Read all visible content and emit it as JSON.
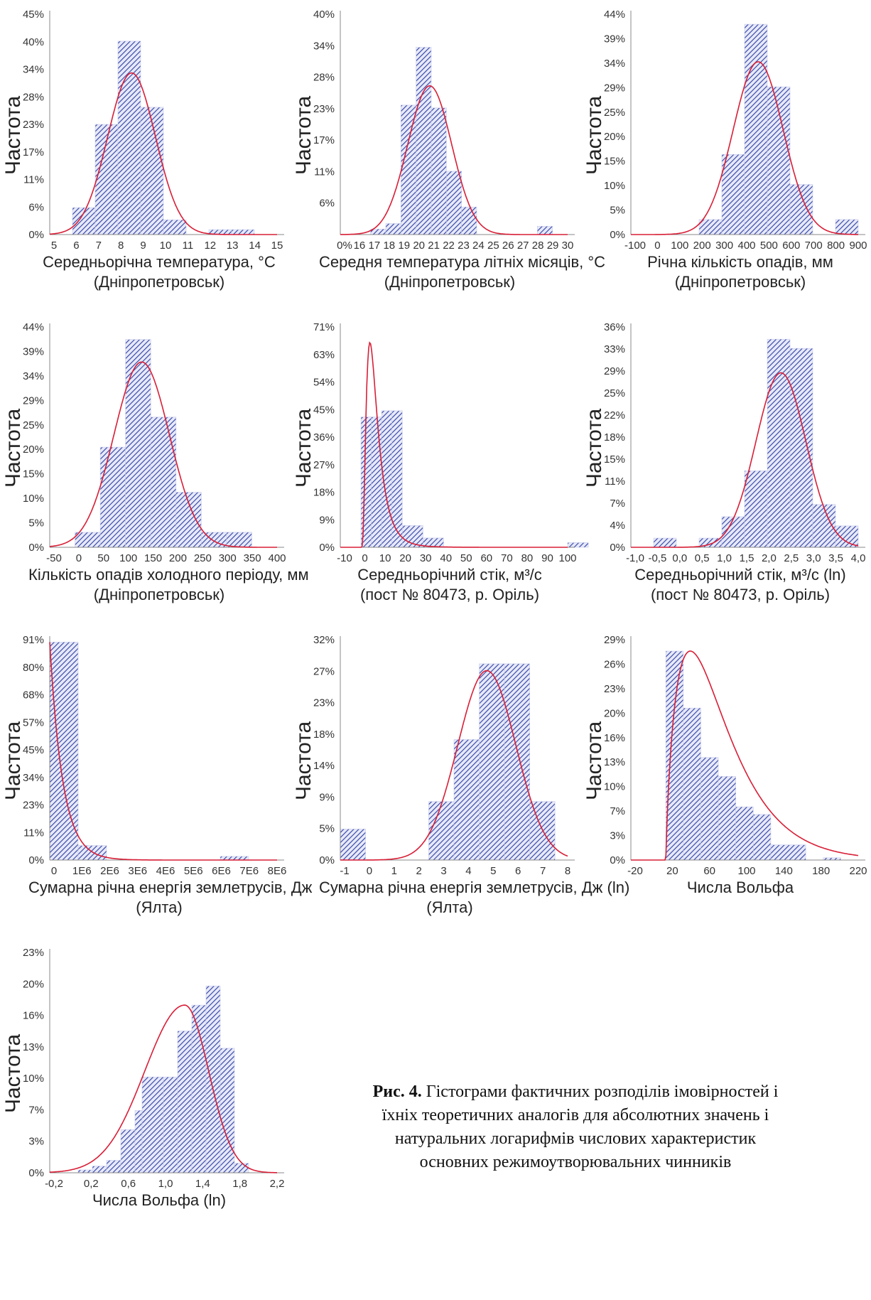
{
  "ylabel": "Частота",
  "caption": {
    "prefix": "Рис. 4.",
    "text": "Гістограми фактичних розподілів імовірностей і їхніх теоретичних аналогів для абсолютних значень і натуральних логарифмів числових характеристик основних режимоутворювальних чинників"
  },
  "colors": {
    "bar": "#2d3fa8",
    "curve": "#d81e36",
    "axis": "#888888"
  },
  "chart_data": [
    {
      "type": "bar",
      "ylabel": "Частота",
      "xlabel": "Середньорічна температура, °C",
      "xlabel2": "(Дніпропетровськ)",
      "x_ticks": [
        "5",
        "6",
        "7",
        "8",
        "9",
        "10",
        "11",
        "12",
        "13",
        "14",
        "15"
      ],
      "x_range": [
        5,
        15
      ],
      "y_ticks": [
        "0%",
        "6%",
        "11%",
        "17%",
        "23%",
        "28%",
        "34%",
        "40%",
        "45%"
      ],
      "y_max": 45,
      "bars": [
        [
          6,
          7,
          5.5
        ],
        [
          7,
          8,
          22.5
        ],
        [
          8,
          9,
          39.5
        ],
        [
          9,
          10,
          26
        ],
        [
          10,
          11,
          3
        ],
        [
          12,
          13,
          1
        ],
        [
          13,
          14,
          1
        ]
      ],
      "curve": {
        "kind": "normal",
        "mu": 8.6,
        "sigma": 1.05,
        "peak": 33
      }
    },
    {
      "type": "bar",
      "ylabel": "Частота",
      "xlabel": "Середня температура літніх місяців, °C",
      "xlabel2": "(Дніпропетровськ)",
      "x_ticks": [
        "0%",
        "16",
        "17",
        "18",
        "19",
        "20",
        "21",
        "22",
        "23",
        "24",
        "25",
        "26",
        "27",
        "28",
        "29",
        "30"
      ],
      "x_range": [
        15,
        30
      ],
      "y_ticks": [
        "",
        "6%",
        "11%",
        "17%",
        "23%",
        "28%",
        "34%",
        "40%"
      ],
      "y_max": 40,
      "bars": [
        [
          17,
          18,
          1
        ],
        [
          18,
          19,
          2
        ],
        [
          19,
          20,
          23.5
        ],
        [
          20,
          21,
          34
        ],
        [
          21,
          22,
          23
        ],
        [
          22,
          23,
          11.5
        ],
        [
          23,
          24,
          5
        ],
        [
          28,
          29,
          1.5
        ]
      ],
      "curve": {
        "kind": "normal",
        "mu": 20.9,
        "sigma": 1.45,
        "peak": 27
      }
    },
    {
      "type": "bar",
      "ylabel": "Частота",
      "xlabel": "Річна кількість опадів, мм",
      "xlabel2": "(Дніпропетровськ)",
      "x_ticks": [
        "-100",
        "0",
        "100",
        "200",
        "300",
        "400",
        "500",
        "600",
        "700",
        "800",
        "900"
      ],
      "x_range": [
        -100,
        900
      ],
      "y_ticks": [
        "0%",
        "5%",
        "10%",
        "15%",
        "20%",
        "25%",
        "29%",
        "34%",
        "39%",
        "44%"
      ],
      "y_max": 44,
      "bars": [
        [
          200,
          300,
          3
        ],
        [
          300,
          400,
          16
        ],
        [
          400,
          500,
          42
        ],
        [
          500,
          600,
          29.5
        ],
        [
          600,
          700,
          10
        ],
        [
          800,
          900,
          3
        ]
      ],
      "curve": {
        "kind": "normal",
        "mu": 460,
        "sigma": 110,
        "peak": 34.5
      }
    },
    {
      "type": "bar",
      "ylabel": "Частота",
      "xlabel": "Кількість опадів холодного періоду, мм",
      "xlabel2": "(Дніпропетровськ)",
      "x_ticks": [
        "-50",
        "0",
        "50",
        "100",
        "150",
        "200",
        "250",
        "300",
        "350",
        "400"
      ],
      "x_range": [
        -50,
        400
      ],
      "y_ticks": [
        "0%",
        "5%",
        "10%",
        "15%",
        "20%",
        "25%",
        "29%",
        "34%",
        "39%",
        "44%"
      ],
      "y_max": 44,
      "bars": [
        [
          0,
          50,
          3
        ],
        [
          50,
          100,
          20
        ],
        [
          100,
          150,
          41.5
        ],
        [
          150,
          200,
          26
        ],
        [
          200,
          250,
          11
        ],
        [
          250,
          300,
          3
        ],
        [
          300,
          350,
          3
        ]
      ],
      "curve": {
        "kind": "normal",
        "mu": 132,
        "sigma": 55,
        "peak": 37
      }
    },
    {
      "type": "bar",
      "ylabel": "Частота",
      "xlabel": "Середньорічний стік, м³/с",
      "xlabel2": "(пост № 80473, р. Оріль)",
      "x_ticks": [
        "-10",
        "0",
        "10",
        "20",
        "30",
        "40",
        "50",
        "60",
        "70",
        "80",
        "90",
        "100"
      ],
      "x_range": [
        -10,
        100
      ],
      "y_ticks": [
        "0%",
        "9%",
        "18%",
        "27%",
        "36%",
        "45%",
        "54%",
        "63%",
        "71%"
      ],
      "y_max": 71,
      "bars": [
        [
          0,
          5,
          42
        ],
        [
          5,
          10,
          42
        ],
        [
          10,
          15,
          44
        ],
        [
          15,
          20,
          44
        ],
        [
          20,
          30,
          7
        ],
        [
          30,
          40,
          3
        ],
        [
          100,
          110,
          1.5
        ]
      ],
      "curve": {
        "kind": "lognormal",
        "mu": 1.85,
        "sigma": 0.62,
        "peak": 66
      }
    },
    {
      "type": "bar",
      "ylabel": "Частота",
      "xlabel": "Середньорічний стік, м³/с (ln)",
      "xlabel2": "(пост № 80473, р. Оріль)",
      "x_ticks": [
        "-1,0",
        "-0,5",
        "0,0",
        "0,5",
        "1,0",
        "1,5",
        "2,0",
        "2,5",
        "3,0",
        "3,5",
        "4,0"
      ],
      "x_range": [
        -1.0,
        4.0
      ],
      "y_ticks": [
        "0%",
        "4%",
        "7%",
        "11%",
        "15%",
        "18%",
        "22%",
        "25%",
        "29%",
        "33%",
        "36%"
      ],
      "y_max": 36,
      "bars": [
        [
          -0.5,
          0,
          1.5
        ],
        [
          0.5,
          1.0,
          1.5
        ],
        [
          1.0,
          1.5,
          5
        ],
        [
          1.5,
          2.0,
          12.5
        ],
        [
          2.0,
          2.5,
          34
        ],
        [
          2.5,
          3.0,
          32.5
        ],
        [
          3.0,
          3.5,
          7
        ],
        [
          3.5,
          4.0,
          3.5
        ]
      ],
      "curve": {
        "kind": "normal",
        "mu": 2.3,
        "sigma": 0.55,
        "peak": 28.5
      }
    },
    {
      "type": "bar",
      "ylabel": "Частота",
      "xlabel": "Сумарна річна енергія землетрусів, Дж",
      "xlabel2": "(Ялта)",
      "x_ticks": [
        "0",
        "1E6",
        "2E6",
        "3E6",
        "4E6",
        "5E6",
        "6E6",
        "7E6",
        "8E6"
      ],
      "x_range": [
        0,
        8
      ],
      "y_ticks": [
        "0%",
        "11%",
        "23%",
        "34%",
        "45%",
        "57%",
        "68%",
        "80%",
        "91%"
      ],
      "y_max": 91,
      "bars": [
        [
          0,
          1,
          90
        ],
        [
          1,
          2,
          6
        ],
        [
          6,
          7,
          1.5
        ]
      ],
      "curve": {
        "kind": "exponential",
        "peak": 90,
        "rate": 2.2
      }
    },
    {
      "type": "bar",
      "ylabel": "Частота",
      "xlabel": "Сумарна річна енергія землетрусів, Дж (ln)",
      "xlabel2": "(Ялта)",
      "x_ticks": [
        "-1",
        "0",
        "1",
        "2",
        "3",
        "4",
        "5",
        "6",
        "7",
        "8"
      ],
      "x_range": [
        -1,
        8
      ],
      "y_ticks": [
        "0%",
        "5%",
        "9%",
        "14%",
        "18%",
        "23%",
        "27%",
        "32%"
      ],
      "y_max": 32,
      "bars": [
        [
          -1,
          0,
          4.5
        ],
        [
          2.5,
          3.5,
          8.5
        ],
        [
          3.5,
          4.5,
          17.5
        ],
        [
          4.5,
          5.5,
          28.5
        ],
        [
          5.5,
          6.5,
          28.5
        ],
        [
          6.5,
          7.5,
          8.5
        ]
      ],
      "curve": {
        "kind": "normal",
        "mu": 4.8,
        "sigma": 1.15,
        "peak": 27.5
      }
    },
    {
      "type": "bar",
      "ylabel": "Частота",
      "xlabel": "Числа Вольфа",
      "xlabel2": "",
      "x_ticks": [
        "-20",
        "20",
        "60",
        "100",
        "140",
        "180",
        "220"
      ],
      "x_range": [
        -40,
        220
      ],
      "y_ticks": [
        "0%",
        "3%",
        "7%",
        "10%",
        "13%",
        "16%",
        "20%",
        "23%",
        "26%",
        "29%"
      ],
      "y_max": 29,
      "bars": [
        [
          0,
          20,
          27.5
        ],
        [
          20,
          40,
          20
        ],
        [
          40,
          60,
          13.5
        ],
        [
          60,
          80,
          11
        ],
        [
          80,
          100,
          7
        ],
        [
          100,
          120,
          6
        ],
        [
          120,
          160,
          2
        ],
        [
          180,
          200,
          0.3
        ]
      ],
      "curve": {
        "kind": "gamma",
        "k": 1.8,
        "theta": 35,
        "shift": 0,
        "peak": 27.5
      }
    },
    {
      "type": "bar",
      "ylabel": "Частота",
      "xlabel": "Числа Вольфа (ln)",
      "xlabel2": "",
      "x_ticks": [
        "-0,2",
        "0,2",
        "0,6",
        "1,0",
        "1,4",
        "1,8",
        "2,2"
      ],
      "x_range": [
        -0.4,
        2.8
      ],
      "y_ticks": [
        "0%",
        "3%",
        "7%",
        "10%",
        "13%",
        "16%",
        "20%",
        "23%"
      ],
      "y_max": 23,
      "bars": [
        [
          0.0,
          0.2,
          0.3
        ],
        [
          0.2,
          0.4,
          0.7
        ],
        [
          0.4,
          0.6,
          1.3
        ],
        [
          0.6,
          0.8,
          4.5
        ],
        [
          0.8,
          0.9,
          6.5
        ],
        [
          0.9,
          1.2,
          10
        ],
        [
          1.2,
          1.4,
          10
        ],
        [
          1.4,
          1.6,
          14.8
        ],
        [
          1.6,
          1.8,
          17.5
        ],
        [
          1.8,
          2.0,
          19.5
        ],
        [
          2.0,
          2.2,
          13
        ],
        [
          2.2,
          2.4,
          1
        ]
      ],
      "curve": {
        "kind": "skewnormal",
        "mu": 1.5,
        "sigma": 0.45,
        "peak": 17.5
      }
    }
  ]
}
